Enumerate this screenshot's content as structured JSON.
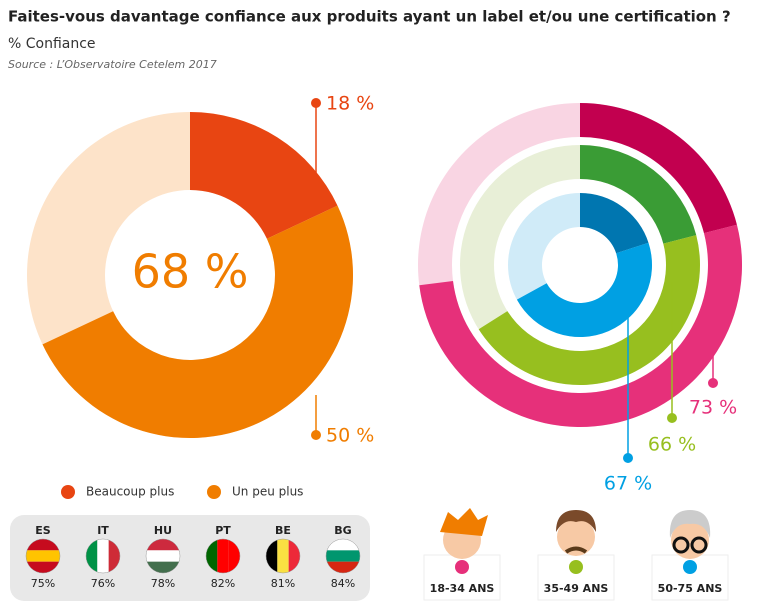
{
  "chart_data": [
    {
      "type": "donut",
      "title": "Faites-vous davantage confiance aux produits ayant un label et/ou une certification ?",
      "subtitle": "% Confiance",
      "source": "Source : L’Observatoire Cetelem 2017",
      "center_label": "68 %",
      "categories": [
        "Beaucoup plus",
        "Un peu plus"
      ],
      "values": [
        18,
        50
      ],
      "value_labels": [
        "18 %",
        "50 %"
      ],
      "colors": [
        "#e84512",
        "#f07d00"
      ],
      "background_color": "#fde3c9"
    },
    {
      "type": "rings",
      "categories": [
        "18-34 ANS",
        "35-49 ANS",
        "50-75 ANS"
      ],
      "beaucoup_plus": [
        21,
        21,
        20
      ],
      "totals": [
        73,
        66,
        67
      ],
      "total_labels": [
        "73 %",
        "66 %",
        "67 %"
      ],
      "dark_colors": [
        "#c2004f",
        "#3a9c35",
        "#0076b0"
      ],
      "colors": [
        "#e6307a",
        "#97bf1f",
        "#00a0e3"
      ],
      "background_colors": [
        "#f9d5e3",
        "#e8efd7",
        "#d0ebf8"
      ]
    },
    {
      "type": "table",
      "categories": [
        "ES",
        "IT",
        "HU",
        "PT",
        "BE",
        "BG"
      ],
      "values": [
        75,
        76,
        78,
        82,
        81,
        84
      ],
      "value_labels": [
        "75%",
        "76%",
        "78%",
        "82%",
        "81%",
        "84%"
      ]
    }
  ]
}
